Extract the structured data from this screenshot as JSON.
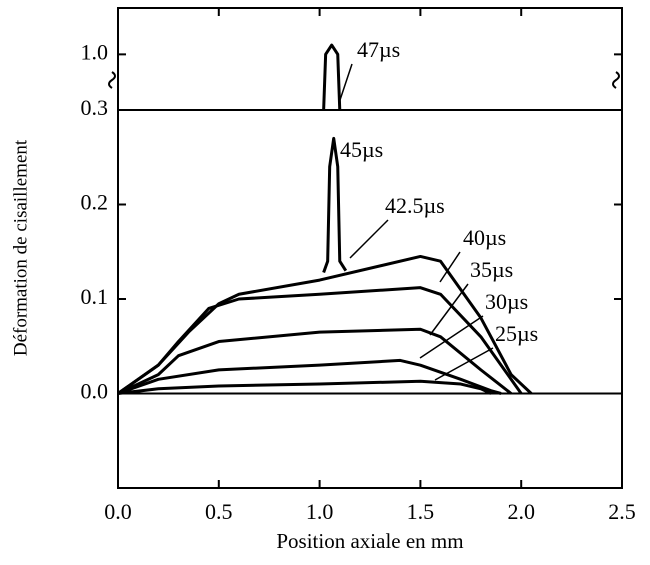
{
  "chart_data": [
    {
      "type": "line",
      "xlim": [
        0,
        2.5
      ],
      "ylim": [
        0.94,
        1.05
      ],
      "yticks": [
        {
          "value": 1.0,
          "label": "1.0"
        }
      ],
      "series": [
        {
          "name": "47µs",
          "color": "#000000",
          "x": [
            1.02,
            1.03,
            1.06,
            1.09,
            1.1
          ],
          "values": [
            0.94,
            1.0,
            1.01,
            1.0,
            0.94
          ]
        }
      ]
    },
    {
      "type": "line",
      "x_label": "Position axiale en mm",
      "y_label": "Déformation de cisaillement",
      "xlim": [
        0,
        2.5
      ],
      "ylim": [
        -0.1,
        0.3
      ],
      "xticks": [
        {
          "value": 0,
          "label": "0.0"
        },
        {
          "value": 0.5,
          "label": "0.5"
        },
        {
          "value": 1,
          "label": "1.0"
        },
        {
          "value": 1.5,
          "label": "1.5"
        },
        {
          "value": 2,
          "label": "2.0"
        },
        {
          "value": 2.5,
          "label": "2.5"
        }
      ],
      "yticks": [
        {
          "value": 0,
          "label": "0.0"
        },
        {
          "value": 0.1,
          "label": "0.1"
        },
        {
          "value": 0.2,
          "label": "0.2"
        },
        {
          "value": 0.3,
          "label": "0.3"
        }
      ],
      "series": [
        {
          "name": "45µs",
          "color": "#000000",
          "x": [
            1.02,
            1.04,
            1.05,
            1.07,
            1.09,
            1.1,
            1.13
          ],
          "values": [
            0.128,
            0.14,
            0.24,
            0.27,
            0.24,
            0.14,
            0.13
          ]
        },
        {
          "name": "42.5µs",
          "color": "#000000",
          "x": [
            0,
            0.2,
            0.35,
            0.5,
            0.6,
            1.0,
            1.5,
            1.6,
            1.8,
            1.95,
            2.05
          ],
          "values": [
            0,
            0.03,
            0.065,
            0.095,
            0.105,
            0.12,
            0.145,
            0.14,
            0.08,
            0.02,
            0
          ]
        },
        {
          "name": "40µs",
          "color": "#000000",
          "x": [
            0,
            0.2,
            0.3,
            0.45,
            0.6,
            1.0,
            1.5,
            1.6,
            1.8,
            2.0
          ],
          "values": [
            0,
            0.03,
            0.055,
            0.09,
            0.1,
            0.105,
            0.112,
            0.105,
            0.06,
            0
          ]
        },
        {
          "name": "35µs",
          "color": "#000000",
          "x": [
            0,
            0.2,
            0.3,
            0.5,
            1.0,
            1.5,
            1.6,
            1.8,
            1.95
          ],
          "values": [
            0,
            0.02,
            0.04,
            0.055,
            0.065,
            0.068,
            0.06,
            0.025,
            0
          ]
        },
        {
          "name": "30µs",
          "color": "#000000",
          "x": [
            0,
            0.2,
            0.5,
            1.0,
            1.4,
            1.5,
            1.7,
            1.85,
            1.9
          ],
          "values": [
            0,
            0.015,
            0.025,
            0.03,
            0.035,
            0.03,
            0.015,
            0.003,
            0
          ]
        },
        {
          "name": "25µs",
          "color": "#000000",
          "x": [
            0,
            0.2,
            0.5,
            1.0,
            1.5,
            1.7,
            1.8,
            1.85
          ],
          "values": [
            0,
            0.005,
            0.008,
            0.01,
            0.013,
            0.01,
            0.005,
            0
          ]
        }
      ]
    }
  ]
}
